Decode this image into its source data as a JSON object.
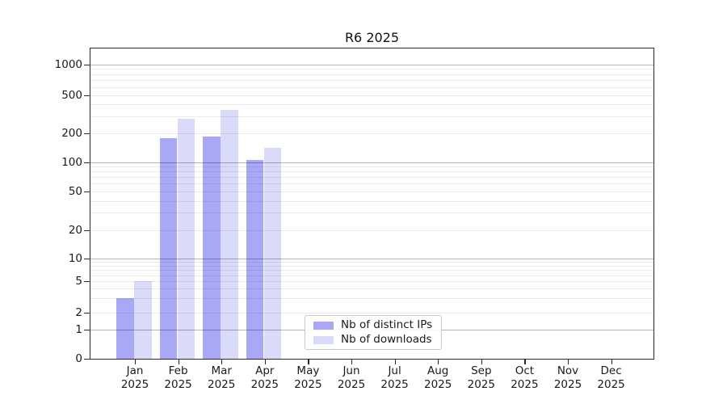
{
  "chart_data": {
    "type": "bar",
    "title": "R6 2025",
    "categories": [
      "Jan",
      "Feb",
      "Mar",
      "Apr",
      "May",
      "Jun",
      "Jul",
      "Aug",
      "Sep",
      "Oct",
      "Nov",
      "Dec"
    ],
    "category_year": "2025",
    "series": [
      {
        "name": "Nb of distinct IPs",
        "color": "#a8a8f6",
        "values": [
          3,
          175,
          185,
          105,
          0,
          0,
          0,
          0,
          0,
          0,
          0,
          0
        ]
      },
      {
        "name": "Nb of downloads",
        "color": "#dadaf9",
        "values": [
          5,
          280,
          350,
          140,
          0,
          0,
          0,
          0,
          0,
          0,
          0,
          0
        ]
      }
    ],
    "yscale": "log",
    "ytick_labels": [
      "0",
      "1",
      "2",
      "5",
      "10",
      "20",
      "50",
      "100",
      "200",
      "500",
      "1000"
    ],
    "ytick_values": [
      0,
      1,
      2,
      5,
      10,
      20,
      50,
      100,
      200,
      500,
      1000
    ],
    "ylim": [
      0,
      1500
    ],
    "grid": "horizontal",
    "legend_position": "lower-center-inside"
  },
  "colors": {
    "bar_distinct_ips": "#a8a8f6",
    "bar_downloads": "#dadaf9",
    "major_gridline": "#b5b5b5",
    "minor_gridline": "#ebebeb",
    "axis": "#2a2a2a",
    "background": "#ffffff"
  }
}
